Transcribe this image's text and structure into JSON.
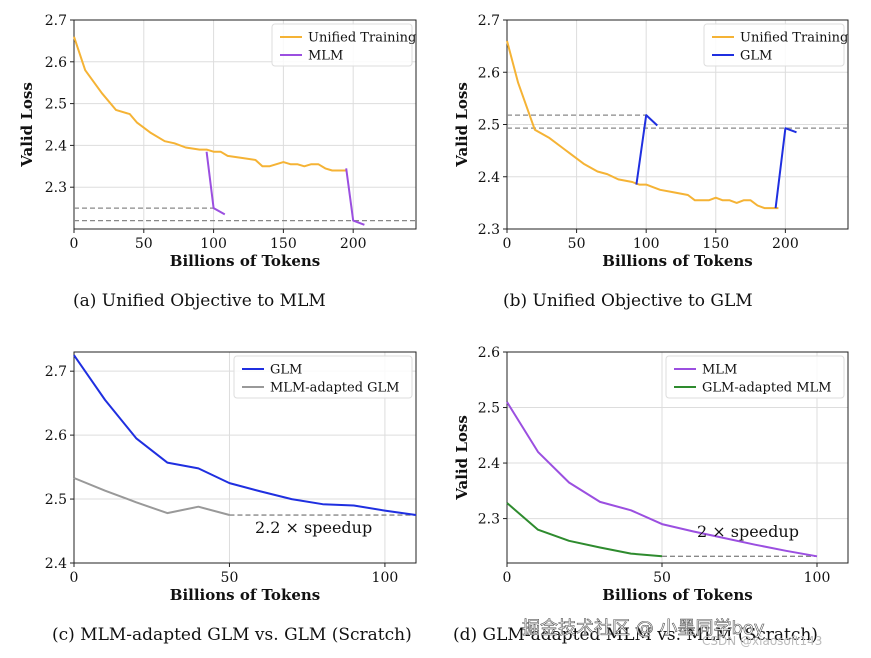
{
  "colors": {
    "unified": "#f5b335",
    "mlm": "#9b4fe0",
    "glm": "#1f2fe0",
    "mlm_adapted_glm": "#999999",
    "glm_adapted_mlm": "#2e8b2e",
    "ref_line": "#888888",
    "grid": "#dddddd"
  },
  "watermark": {
    "main": "掘金技术社区 @ 小墨同学boy",
    "sub": "CSDN @xiaosoft143"
  },
  "chart_data": [
    {
      "id": "a",
      "type": "line",
      "caption": "(a) Unified Objective to MLM",
      "xlabel": "Billions of Tokens",
      "ylabel": "Valid Loss",
      "xlim": [
        0,
        245
      ],
      "ylim": [
        2.2,
        2.7
      ],
      "xticks": [
        "0",
        "50",
        "100",
        "150",
        "200"
      ],
      "yticks": [
        "2.3",
        "2.4",
        "2.5",
        "2.6",
        "2.7"
      ],
      "xtick_values": [
        0,
        50,
        100,
        150,
        200
      ],
      "ytick_values": [
        2.3,
        2.4,
        2.5,
        2.6,
        2.7
      ],
      "show_ylabel": true,
      "grid": true,
      "legend_position": "top-right",
      "legend": [
        "Unified Training",
        "MLM"
      ],
      "series": [
        {
          "name": "Unified Training",
          "color_key": "unified",
          "x": [
            0,
            8,
            20,
            30,
            40,
            45,
            55,
            65,
            72,
            80,
            90,
            95,
            100,
            105,
            110,
            120,
            130,
            135,
            140,
            145,
            150,
            155,
            160,
            165,
            170,
            175,
            180,
            185,
            190,
            195
          ],
          "y": [
            2.66,
            2.58,
            2.525,
            2.485,
            2.475,
            2.455,
            2.43,
            2.41,
            2.405,
            2.395,
            2.39,
            2.39,
            2.385,
            2.385,
            2.375,
            2.37,
            2.365,
            2.35,
            2.35,
            2.355,
            2.36,
            2.355,
            2.355,
            2.35,
            2.355,
            2.355,
            2.345,
            2.34,
            2.34,
            2.34
          ]
        },
        {
          "name": "MLM",
          "color_key": "mlm",
          "segments": [
            {
              "x": [
                95,
                100,
                108
              ],
              "y": [
                2.385,
                2.25,
                2.235
              ]
            },
            {
              "x": [
                195,
                200,
                208
              ],
              "y": [
                2.345,
                2.22,
                2.21
              ]
            }
          ]
        }
      ],
      "ref_lines": [
        {
          "y": 2.25,
          "x": [
            0,
            100
          ]
        },
        {
          "y": 2.22,
          "x": [
            0,
            245
          ]
        }
      ]
    },
    {
      "id": "b",
      "type": "line",
      "caption": "(b) Unified Objective to GLM",
      "xlabel": "Billions of Tokens",
      "ylabel": "Valid Loss",
      "xlim": [
        0,
        245
      ],
      "ylim": [
        2.3,
        2.7
      ],
      "xticks": [
        "0",
        "50",
        "100",
        "150",
        "200"
      ],
      "yticks": [
        "2.3",
        "2.4",
        "2.5",
        "2.6",
        "2.7"
      ],
      "xtick_values": [
        0,
        50,
        100,
        150,
        200
      ],
      "ytick_values": [
        2.3,
        2.4,
        2.5,
        2.6,
        2.7
      ],
      "show_ylabel": true,
      "grid": true,
      "legend_position": "top-right",
      "legend": [
        "Unified Training",
        "GLM"
      ],
      "series": [
        {
          "name": "Unified Training",
          "color_key": "unified",
          "x": [
            0,
            8,
            20,
            30,
            40,
            45,
            55,
            65,
            72,
            80,
            90,
            95,
            100,
            105,
            110,
            120,
            130,
            135,
            140,
            145,
            150,
            155,
            160,
            165,
            170,
            175,
            180,
            185,
            190,
            195
          ],
          "y": [
            2.66,
            2.58,
            2.49,
            2.475,
            2.455,
            2.445,
            2.425,
            2.41,
            2.405,
            2.395,
            2.39,
            2.385,
            2.385,
            2.38,
            2.375,
            2.37,
            2.365,
            2.355,
            2.355,
            2.355,
            2.36,
            2.355,
            2.355,
            2.35,
            2.355,
            2.355,
            2.345,
            2.34,
            2.34,
            2.34
          ]
        },
        {
          "name": "GLM",
          "color_key": "glm",
          "segments": [
            {
              "x": [
                93,
                100,
                108
              ],
              "y": [
                2.385,
                2.518,
                2.498
              ]
            },
            {
              "x": [
                193,
                200,
                208
              ],
              "y": [
                2.34,
                2.493,
                2.485
              ]
            }
          ]
        }
      ],
      "ref_lines": [
        {
          "y": 2.518,
          "x": [
            0,
            100
          ]
        },
        {
          "y": 2.493,
          "x": [
            0,
            245
          ]
        }
      ]
    },
    {
      "id": "c",
      "type": "line",
      "caption": "(c) MLM-adapted GLM vs. GLM (Scratch)",
      "xlabel": "Billions of Tokens",
      "ylabel": "",
      "xlim": [
        0,
        110
      ],
      "ylim": [
        2.4,
        2.73
      ],
      "xticks": [
        "0",
        "50",
        "100"
      ],
      "yticks": [
        "2.4",
        "2.5",
        "2.6",
        "2.7"
      ],
      "xtick_values": [
        0,
        50,
        100
      ],
      "ytick_values": [
        2.4,
        2.5,
        2.6,
        2.7
      ],
      "show_ylabel": false,
      "grid": true,
      "legend_position": "top-right",
      "legend": [
        "GLM",
        "MLM-adapted GLM"
      ],
      "annotation": "2.2 × speedup",
      "series": [
        {
          "name": "GLM",
          "color_key": "glm",
          "x": [
            0,
            10,
            20,
            30,
            40,
            50,
            60,
            70,
            80,
            90,
            100,
            110
          ],
          "y": [
            2.725,
            2.655,
            2.595,
            2.557,
            2.548,
            2.525,
            2.512,
            2.5,
            2.492,
            2.49,
            2.482,
            2.475
          ]
        },
        {
          "name": "MLM-adapted GLM",
          "color_key": "mlm_adapted_glm",
          "x": [
            0,
            10,
            20,
            30,
            40,
            50
          ],
          "y": [
            2.533,
            2.513,
            2.495,
            2.478,
            2.488,
            2.475
          ]
        }
      ],
      "ref_lines": [
        {
          "y": 2.475,
          "x": [
            50,
            110
          ]
        }
      ]
    },
    {
      "id": "d",
      "type": "line",
      "caption": "(d) GLM-adapted MLM vs. MLM (Scratch)",
      "xlabel": "Billions of Tokens",
      "ylabel": "Valid Loss",
      "xlim": [
        0,
        110
      ],
      "ylim": [
        2.22,
        2.6
      ],
      "xticks": [
        "0",
        "50",
        "100"
      ],
      "yticks": [
        "2.3",
        "2.4",
        "2.5",
        "2.6"
      ],
      "xtick_values": [
        0,
        50,
        100
      ],
      "ytick_values": [
        2.3,
        2.4,
        2.5,
        2.6
      ],
      "show_ylabel": true,
      "grid": true,
      "legend_position": "top-right",
      "legend": [
        "MLM",
        "GLM-adapted MLM"
      ],
      "annotation": "2 × speedup",
      "series": [
        {
          "name": "MLM",
          "color_key": "mlm",
          "x": [
            0,
            10,
            20,
            30,
            40,
            50,
            60,
            70,
            80,
            90,
            100
          ],
          "y": [
            2.51,
            2.42,
            2.365,
            2.33,
            2.315,
            2.29,
            2.277,
            2.265,
            2.253,
            2.242,
            2.232
          ]
        },
        {
          "name": "GLM-adapted MLM",
          "color_key": "glm_adapted_mlm",
          "x": [
            0,
            10,
            20,
            30,
            40,
            50
          ],
          "y": [
            2.328,
            2.28,
            2.26,
            2.248,
            2.237,
            2.232
          ]
        }
      ],
      "ref_lines": [
        {
          "y": 2.232,
          "x": [
            50,
            100
          ]
        }
      ]
    }
  ]
}
